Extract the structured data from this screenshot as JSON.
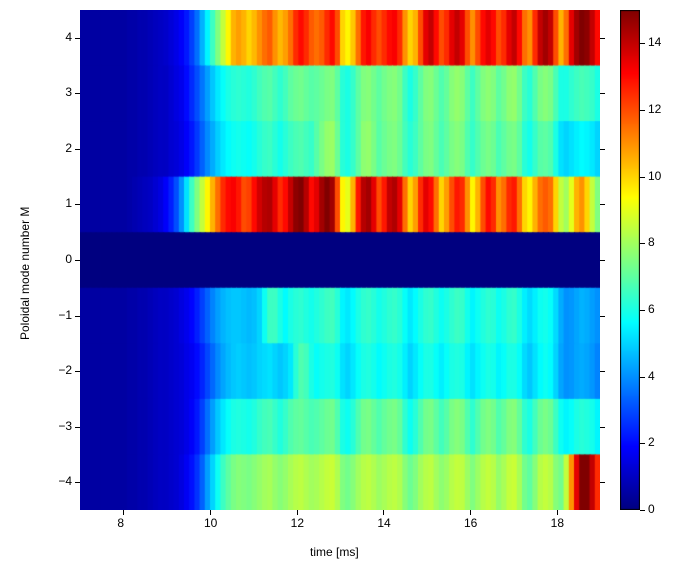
{
  "chart": {
    "type": "heatmap",
    "xlabel": "time [ms]",
    "ylabel": "Poloidal mode number M",
    "xlim": [
      7,
      19
    ],
    "ylim": [
      -4.5,
      4.5
    ],
    "xticks": [
      8,
      10,
      12,
      14,
      16,
      18
    ],
    "yticks": [
      -4,
      -3,
      -2,
      -1,
      0,
      1,
      2,
      3,
      4
    ],
    "vmin": 0,
    "vmax": 15,
    "cbar_ticks": [
      0,
      2,
      4,
      6,
      8,
      10,
      12,
      14
    ],
    "background_color": "#ffffff",
    "label_fontsize": 12,
    "tick_fontsize": 12,
    "nx": 100,
    "row_profiles": {
      "4": [
        0.5,
        0.5,
        0.5,
        0.5,
        0.5,
        0.5,
        0.5,
        0.5,
        0.5,
        0.6,
        0.6,
        0.7,
        0.7,
        0.8,
        0.9,
        1.0,
        1.1,
        1.3,
        1.5,
        1.8,
        2.2,
        2.8,
        3.5,
        4.5,
        5.5,
        6.5,
        7.5,
        8.5,
        9.5,
        10.5,
        10.8,
        10.5,
        10.0,
        10.4,
        11.0,
        11.5,
        11.8,
        11.0,
        10.4,
        10.8,
        11.5,
        12.5,
        13.0,
        12.5,
        11.8,
        11.5,
        11.8,
        12.5,
        13.0,
        12.0,
        10.0,
        9.5,
        10.2,
        11.5,
        12.8,
        13.2,
        12.5,
        12.0,
        12.5,
        13.0,
        13.2,
        12.5,
        11.0,
        10.0,
        10.5,
        12.0,
        13.5,
        14.0,
        13.0,
        12.0,
        12.5,
        13.5,
        14.0,
        13.5,
        12.0,
        11.0,
        12.0,
        13.0,
        13.5,
        13.0,
        12.0,
        12.5,
        13.5,
        14.0,
        13.0,
        11.5,
        11.0,
        12.5,
        14.0,
        14.5,
        14.0,
        12.0,
        10.5,
        11.5,
        13.5,
        14.5,
        15.0,
        14.8,
        14.0,
        13.0
      ],
      "3": [
        0.5,
        0.5,
        0.5,
        0.5,
        0.5,
        0.5,
        0.5,
        0.5,
        0.5,
        0.6,
        0.6,
        0.7,
        0.7,
        0.8,
        0.9,
        1.0,
        1.0,
        1.2,
        1.4,
        1.6,
        2.0,
        2.5,
        3.0,
        3.6,
        4.2,
        4.8,
        5.3,
        5.7,
        6.0,
        6.2,
        6.3,
        6.2,
        6.1,
        6.3,
        6.6,
        6.8,
        6.9,
        6.6,
        6.3,
        6.6,
        7.0,
        7.2,
        7.3,
        7.1,
        6.9,
        7.0,
        7.2,
        7.4,
        7.5,
        7.0,
        6.2,
        6.0,
        6.4,
        7.0,
        7.5,
        7.6,
        7.3,
        7.0,
        7.3,
        7.5,
        7.6,
        7.3,
        6.5,
        6.0,
        6.4,
        7.0,
        7.5,
        7.6,
        7.2,
        6.8,
        7.1,
        7.6,
        7.8,
        7.6,
        7.0,
        6.5,
        7.0,
        7.5,
        7.7,
        7.5,
        7.0,
        7.3,
        7.7,
        7.8,
        7.3,
        6.5,
        6.2,
        6.8,
        7.4,
        7.6,
        7.4,
        6.7,
        6.0,
        6.0,
        6.3,
        6.5,
        6.7,
        6.6,
        6.4,
        6.0
      ],
      "2": [
        0.5,
        0.5,
        0.5,
        0.5,
        0.5,
        0.5,
        0.5,
        0.5,
        0.5,
        0.6,
        0.6,
        0.7,
        0.7,
        0.8,
        0.9,
        1.0,
        1.0,
        1.2,
        1.3,
        1.5,
        1.8,
        2.2,
        2.7,
        3.3,
        3.9,
        4.4,
        4.9,
        5.3,
        5.6,
        5.8,
        5.9,
        5.8,
        5.7,
        5.9,
        6.2,
        6.4,
        6.5,
        6.2,
        5.9,
        6.2,
        6.5,
        6.7,
        6.8,
        6.6,
        6.4,
        6.9,
        7.4,
        7.8,
        7.9,
        7.2,
        6.2,
        6.0,
        6.4,
        7.0,
        7.7,
        7.8,
        7.4,
        6.9,
        7.2,
        7.4,
        7.5,
        7.2,
        6.6,
        6.2,
        6.5,
        7.0,
        7.4,
        7.5,
        7.1,
        6.7,
        7.0,
        7.4,
        7.6,
        7.4,
        6.8,
        6.4,
        6.8,
        7.2,
        7.4,
        7.2,
        6.7,
        7.0,
        7.3,
        7.4,
        7.0,
        6.2,
        5.9,
        6.4,
        6.9,
        7.0,
        6.8,
        6.0,
        5.2,
        5.0,
        5.2,
        5.4,
        5.6,
        5.5,
        5.3,
        5.0
      ],
      "1": [
        0.5,
        0.5,
        0.5,
        0.5,
        0.5,
        0.5,
        0.5,
        0.5,
        0.5,
        0.6,
        0.7,
        0.8,
        0.9,
        1.0,
        1.2,
        1.4,
        1.8,
        2.3,
        3.0,
        4.0,
        5.2,
        6.5,
        7.5,
        8.5,
        9.5,
        10.5,
        11.5,
        12.5,
        13.0,
        13.2,
        12.8,
        12.0,
        12.2,
        13.0,
        13.8,
        14.2,
        14.3,
        13.5,
        12.5,
        13.0,
        14.0,
        14.8,
        15.0,
        14.2,
        13.0,
        13.5,
        14.5,
        15.0,
        14.5,
        12.0,
        9.5,
        9.0,
        10.5,
        12.8,
        14.2,
        14.5,
        13.5,
        12.0,
        12.8,
        14.0,
        14.3,
        13.5,
        11.5,
        10.0,
        10.8,
        12.5,
        13.5,
        13.0,
        11.5,
        10.0,
        10.8,
        12.0,
        12.8,
        12.5,
        11.0,
        9.5,
        10.5,
        12.0,
        13.0,
        12.5,
        11.0,
        11.5,
        12.5,
        12.8,
        11.5,
        10.0,
        9.5,
        10.5,
        11.5,
        11.8,
        11.5,
        10.0,
        8.5,
        8.0,
        9.0,
        10.5,
        11.0,
        10.0,
        8.5,
        7.5
      ],
      "0": [
        0.0,
        0.0,
        0.0,
        0.0,
        0.0,
        0.0,
        0.0,
        0.0,
        0.0,
        0.0,
        0.0,
        0.0,
        0.0,
        0.0,
        0.0,
        0.0,
        0.0,
        0.0,
        0.0,
        0.0,
        0.0,
        0.0,
        0.0,
        0.0,
        0.0,
        0.0,
        0.0,
        0.0,
        0.0,
        0.0,
        0.0,
        0.0,
        0.0,
        0.0,
        0.0,
        0.0,
        0.0,
        0.0,
        0.0,
        0.0,
        0.0,
        0.0,
        0.0,
        0.0,
        0.0,
        0.0,
        0.0,
        0.0,
        0.0,
        0.0,
        0.0,
        0.0,
        0.0,
        0.0,
        0.0,
        0.0,
        0.0,
        0.0,
        0.0,
        0.0,
        0.0,
        0.0,
        0.0,
        0.0,
        0.0,
        0.0,
        0.0,
        0.0,
        0.0,
        0.0,
        0.0,
        0.0,
        0.0,
        0.0,
        0.0,
        0.0,
        0.0,
        0.0,
        0.0,
        0.0,
        0.0,
        0.0,
        0.0,
        0.0,
        0.0,
        0.0,
        0.0,
        0.0,
        0.0,
        0.0,
        0.0,
        0.0,
        0.0,
        0.0,
        0.0,
        0.0,
        0.0,
        0.0,
        0.0,
        0.0
      ],
      "-1": [
        0.5,
        0.5,
        0.5,
        0.5,
        0.5,
        0.5,
        0.5,
        0.5,
        0.5,
        0.6,
        0.6,
        0.7,
        0.7,
        0.8,
        0.9,
        1.0,
        1.0,
        1.1,
        1.2,
        1.4,
        1.6,
        1.9,
        2.3,
        2.8,
        3.3,
        3.8,
        4.2,
        4.5,
        4.7,
        4.8,
        4.8,
        4.7,
        4.6,
        4.7,
        5.0,
        5.8,
        6.5,
        6.5,
        6.0,
        5.6,
        6.0,
        6.2,
        6.3,
        6.1,
        5.9,
        6.1,
        6.3,
        6.5,
        6.6,
        6.2,
        5.5,
        5.3,
        5.6,
        6.0,
        6.3,
        6.4,
        6.2,
        5.9,
        6.1,
        6.3,
        6.4,
        6.2,
        5.7,
        5.3,
        5.6,
        6.0,
        6.3,
        6.4,
        6.1,
        5.8,
        6.0,
        6.3,
        6.5,
        6.4,
        5.9,
        5.5,
        5.8,
        6.1,
        6.3,
        6.2,
        5.8,
        6.0,
        6.3,
        6.4,
        6.0,
        5.4,
        5.1,
        5.4,
        5.8,
        5.9,
        5.7,
        5.1,
        4.4,
        4.0,
        4.1,
        4.3,
        4.5,
        4.4,
        4.2,
        4.0
      ],
      "-2": [
        0.5,
        0.5,
        0.5,
        0.5,
        0.5,
        0.5,
        0.5,
        0.5,
        0.5,
        0.6,
        0.6,
        0.7,
        0.7,
        0.8,
        0.9,
        1.0,
        1.0,
        1.1,
        1.2,
        1.3,
        1.5,
        1.7,
        2.0,
        2.4,
        2.9,
        3.4,
        3.9,
        4.3,
        4.6,
        4.8,
        4.9,
        4.8,
        4.7,
        4.8,
        5.0,
        5.1,
        5.2,
        5.0,
        4.8,
        5.0,
        5.3,
        6.2,
        6.8,
        6.6,
        6.0,
        5.7,
        5.9,
        6.0,
        6.1,
        5.8,
        5.2,
        5.0,
        5.3,
        5.7,
        6.0,
        6.1,
        5.9,
        5.6,
        5.8,
        6.0,
        6.1,
        5.9,
        5.4,
        5.0,
        5.3,
        5.7,
        6.0,
        6.0,
        5.7,
        5.4,
        5.7,
        6.0,
        6.1,
        6.0,
        5.5,
        5.2,
        5.5,
        5.8,
        6.0,
        5.9,
        5.5,
        5.7,
        6.0,
        6.0,
        5.7,
        5.1,
        4.8,
        5.2,
        5.6,
        5.8,
        5.6,
        5.0,
        4.3,
        4.0,
        4.1,
        4.3,
        4.4,
        4.3,
        4.1,
        3.8
      ],
      "-3": [
        0.5,
        0.5,
        0.5,
        0.5,
        0.5,
        0.5,
        0.5,
        0.5,
        0.5,
        0.6,
        0.6,
        0.7,
        0.7,
        0.8,
        0.9,
        1.0,
        1.0,
        1.1,
        1.2,
        1.3,
        1.5,
        1.8,
        2.2,
        2.8,
        3.5,
        4.2,
        4.8,
        5.3,
        5.7,
        6.0,
        6.1,
        6.0,
        5.9,
        6.1,
        6.4,
        6.6,
        6.7,
        6.4,
        6.1,
        6.4,
        6.8,
        7.0,
        7.1,
        6.9,
        6.7,
        6.8,
        7.0,
        7.2,
        7.3,
        6.8,
        6.0,
        5.8,
        6.2,
        6.8,
        7.3,
        7.4,
        7.1,
        6.8,
        7.1,
        7.3,
        7.4,
        7.1,
        6.3,
        5.8,
        6.2,
        6.8,
        7.3,
        7.4,
        7.0,
        6.6,
        6.9,
        7.4,
        7.6,
        7.4,
        6.8,
        6.3,
        6.8,
        7.3,
        7.5,
        7.3,
        6.8,
        7.1,
        7.5,
        7.6,
        7.1,
        6.3,
        6.0,
        6.6,
        7.2,
        7.4,
        7.2,
        6.5,
        5.8,
        5.5,
        5.7,
        6.0,
        6.2,
        6.1,
        5.9,
        5.5
      ],
      "-4": [
        0.5,
        0.5,
        0.5,
        0.5,
        0.5,
        0.5,
        0.5,
        0.5,
        0.5,
        0.6,
        0.6,
        0.7,
        0.7,
        0.8,
        0.9,
        1.0,
        1.0,
        1.1,
        1.2,
        1.4,
        1.7,
        2.1,
        2.6,
        3.3,
        4.2,
        5.0,
        5.8,
        6.5,
        7.0,
        7.4,
        7.6,
        7.5,
        7.4,
        7.6,
        7.8,
        8.0,
        8.1,
        7.8,
        7.6,
        7.8,
        8.1,
        8.3,
        8.4,
        8.2,
        8.0,
        8.1,
        8.3,
        8.5,
        8.6,
        8.2,
        7.5,
        7.3,
        7.6,
        8.0,
        8.3,
        8.4,
        8.2,
        7.9,
        8.1,
        8.3,
        8.4,
        8.2,
        7.6,
        7.2,
        7.5,
        8.0,
        8.3,
        8.4,
        8.0,
        7.7,
        7.9,
        8.3,
        8.5,
        8.4,
        7.9,
        7.5,
        7.9,
        8.3,
        8.5,
        8.3,
        7.8,
        8.1,
        8.5,
        8.6,
        8.1,
        7.3,
        7.0,
        7.6,
        8.3,
        8.5,
        8.3,
        7.6,
        7.3,
        8.5,
        11.0,
        13.5,
        15.0,
        15.0,
        14.0,
        12.5
      ]
    }
  }
}
